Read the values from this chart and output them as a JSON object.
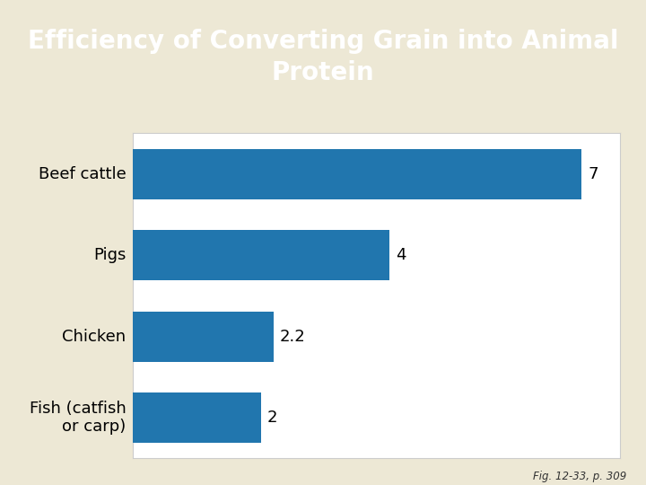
{
  "title": "Efficiency of Converting Grain into Animal\nProtein",
  "title_bg_color": "#1F4E79",
  "title_text_color": "#FFFFFF",
  "chart_bg_color": "#EDE8D5",
  "plot_bg_color": "#FFFFFF",
  "plot_border_color": "#CCCCCC",
  "categories": [
    "Beef cattle",
    "Pigs",
    "Chicken",
    "Fish (catfish\nor carp)"
  ],
  "values": [
    7,
    4,
    2.2,
    2
  ],
  "bar_color": "#2176AE",
  "value_color": "#000000",
  "footnote": "Fig. 12-33, p. 309",
  "footnote_color": "#333333",
  "xlim": [
    0,
    7.6
  ],
  "bar_height": 0.62,
  "label_fontsize": 13,
  "value_fontsize": 13,
  "title_fontsize": 20,
  "footnote_fontsize": 8.5
}
